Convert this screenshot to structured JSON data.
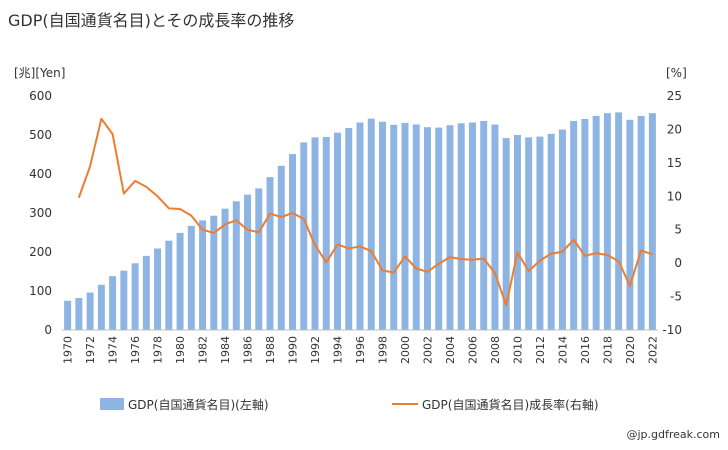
{
  "chart_data": {
    "type": "bar+line",
    "title": "GDP(自国通貨名目)とその成長率の推移",
    "left_axis": {
      "unit_label": "[兆][Yen]",
      "ylim": [
        0,
        600
      ],
      "ticks": [
        0,
        100,
        200,
        300,
        400,
        500,
        600
      ]
    },
    "right_axis": {
      "unit_label": "[%]",
      "ylim": [
        -10,
        25
      ],
      "ticks": [
        -10,
        -5,
        0,
        5,
        10,
        15,
        20,
        25
      ]
    },
    "x": [
      1970,
      1971,
      1972,
      1973,
      1974,
      1975,
      1976,
      1977,
      1978,
      1979,
      1980,
      1981,
      1982,
      1983,
      1984,
      1985,
      1986,
      1987,
      1988,
      1989,
      1990,
      1991,
      1992,
      1993,
      1994,
      1995,
      1996,
      1997,
      1998,
      1999,
      2000,
      2001,
      2002,
      2003,
      2004,
      2005,
      2006,
      2007,
      2008,
      2009,
      2010,
      2011,
      2012,
      2013,
      2014,
      2015,
      2016,
      2017,
      2018,
      2019,
      2020,
      2021,
      2022
    ],
    "xtick_labels": [
      1970,
      1972,
      1974,
      1976,
      1978,
      1980,
      1982,
      1984,
      1986,
      1988,
      1990,
      1992,
      1994,
      1996,
      1998,
      2000,
      2002,
      2004,
      2006,
      2008,
      2010,
      2012,
      2014,
      2016,
      2018,
      2020,
      2022
    ],
    "series": [
      {
        "name": "GDP(自国通貨名目)(左軸)",
        "type": "bar",
        "axis": "left",
        "color": "#8db4e2",
        "values": [
          75,
          82,
          96,
          116,
          138,
          152,
          171,
          190,
          209,
          229,
          249,
          267,
          281,
          293,
          311,
          330,
          347,
          363,
          392,
          421,
          451,
          481,
          494,
          495,
          506,
          518,
          532,
          542,
          534,
          526,
          531,
          527,
          520,
          519,
          525,
          530,
          532,
          536,
          527,
          492,
          500,
          494,
          496,
          503,
          514,
          536,
          541,
          549,
          556,
          558,
          539,
          549,
          556
        ]
      },
      {
        "name": "GDP(自国通貨名目)成長率(右軸)",
        "type": "line",
        "axis": "right",
        "color": "#ed7d31",
        "values": [
          null,
          9.8,
          14.5,
          21.6,
          19.3,
          10.4,
          12.3,
          11.4,
          10.0,
          8.2,
          8.1,
          7.1,
          5.0,
          4.5,
          5.8,
          6.4,
          5.0,
          4.6,
          7.4,
          6.9,
          7.5,
          6.6,
          2.7,
          0.1,
          2.8,
          2.2,
          2.5,
          1.8,
          -1.1,
          -1.4,
          1.0,
          -0.8,
          -1.3,
          -0.1,
          0.9,
          0.6,
          0.5,
          0.7,
          -1.5,
          -6.3,
          1.6,
          -1.2,
          0.4,
          1.4,
          1.7,
          3.5,
          1.1,
          1.5,
          1.2,
          0.3,
          -3.4,
          1.9,
          1.3
        ]
      }
    ],
    "legend_position": "bottom",
    "grid": false
  },
  "credit": "@jp.gdfreak.com"
}
